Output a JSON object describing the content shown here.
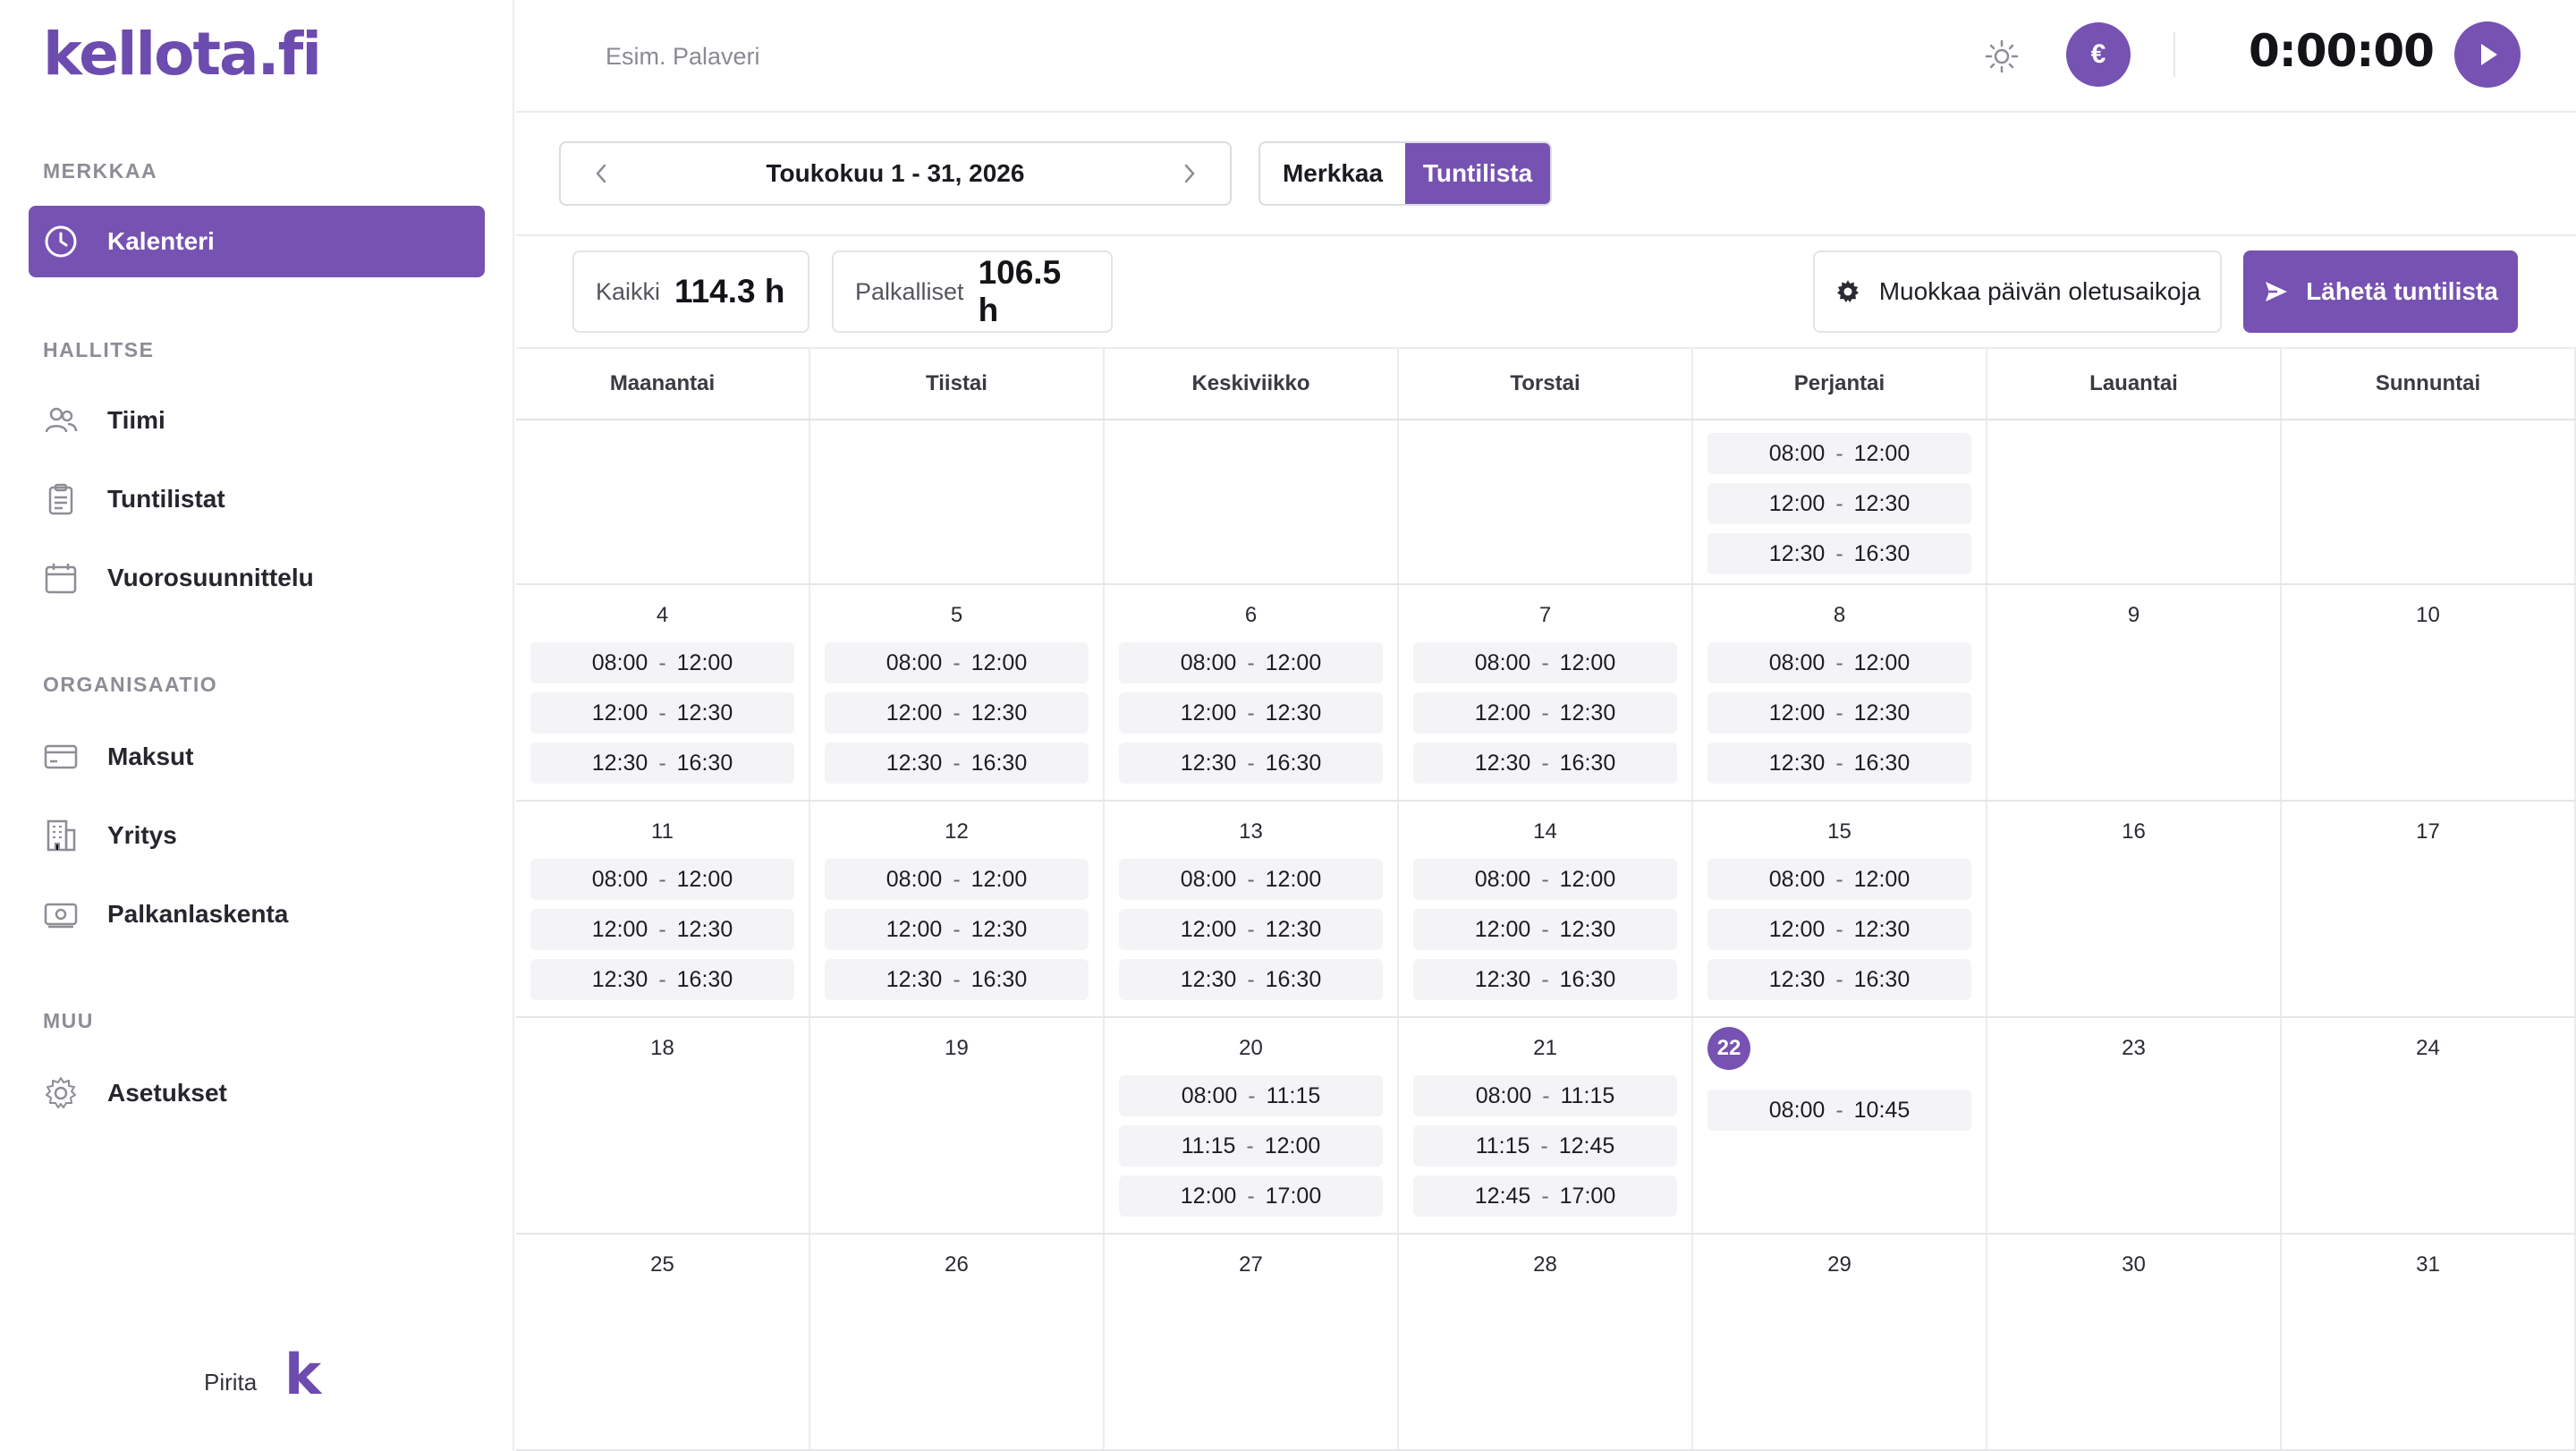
{
  "app": {
    "logo": "kellota.fi"
  },
  "sidebar": {
    "sections": [
      {
        "heading": "MERKKAA",
        "items": [
          {
            "label": "Kalenteri",
            "icon": "clock-icon",
            "active": true
          }
        ]
      },
      {
        "heading": "HALLITSE",
        "items": [
          {
            "label": "Tiimi",
            "icon": "users-icon"
          },
          {
            "label": "Tuntilistat",
            "icon": "clipboard-icon"
          },
          {
            "label": "Vuorosuunnittelu",
            "icon": "calendar-icon"
          }
        ]
      },
      {
        "heading": "ORGANISAATIO",
        "items": [
          {
            "label": "Maksut",
            "icon": "credit-card-icon"
          },
          {
            "label": "Yritys",
            "icon": "building-icon"
          },
          {
            "label": "Palkanlaskenta",
            "icon": "banknote-icon"
          }
        ]
      },
      {
        "heading": "MUU",
        "items": [
          {
            "label": "Asetukset",
            "icon": "gear-icon"
          }
        ]
      }
    ],
    "footer": {
      "user": "Pirita",
      "logo_letter": "k"
    }
  },
  "header": {
    "task_placeholder": "Esim. Palaveri",
    "euro_label": "€",
    "timer": "0:00:00"
  },
  "toolbar": {
    "date_range": "Toukokuu 1 - 31, 2026",
    "view_modes": [
      {
        "label": "Merkkaa",
        "active": false
      },
      {
        "label": "Tuntilista",
        "active": true
      }
    ],
    "stats": [
      {
        "label": "Kaikki",
        "value": "114.3 h"
      },
      {
        "label": "Palkalliset",
        "value": "106.5 h"
      }
    ],
    "edit_defaults_label": "Muokkaa päivän oletusaikoja",
    "send_label": "Lähetä tuntilista"
  },
  "colors": {
    "accent": "#7652b2",
    "entry_bg": "#f4f4f7"
  },
  "calendar": {
    "weekdays": [
      "Maanantai",
      "Tiistai",
      "Keskiviikko",
      "Torstai",
      "Perjantai",
      "Lauantai",
      "Sunnuntai"
    ],
    "today": "22",
    "weeks": [
      [
        {
          "day": "",
          "entries": []
        },
        {
          "day": "",
          "entries": []
        },
        {
          "day": "",
          "entries": []
        },
        {
          "day": "",
          "entries": []
        },
        {
          "day": "",
          "entries": [
            [
              "08:00",
              "12:00"
            ],
            [
              "12:00",
              "12:30"
            ],
            [
              "12:30",
              "16:30"
            ]
          ]
        },
        {
          "day": "",
          "entries": []
        },
        {
          "day": "",
          "entries": []
        }
      ],
      [
        {
          "day": "4",
          "entries": [
            [
              "08:00",
              "12:00"
            ],
            [
              "12:00",
              "12:30"
            ],
            [
              "12:30",
              "16:30"
            ]
          ]
        },
        {
          "day": "5",
          "entries": [
            [
              "08:00",
              "12:00"
            ],
            [
              "12:00",
              "12:30"
            ],
            [
              "12:30",
              "16:30"
            ]
          ]
        },
        {
          "day": "6",
          "entries": [
            [
              "08:00",
              "12:00"
            ],
            [
              "12:00",
              "12:30"
            ],
            [
              "12:30",
              "16:30"
            ]
          ]
        },
        {
          "day": "7",
          "entries": [
            [
              "08:00",
              "12:00"
            ],
            [
              "12:00",
              "12:30"
            ],
            [
              "12:30",
              "16:30"
            ]
          ]
        },
        {
          "day": "8",
          "entries": [
            [
              "08:00",
              "12:00"
            ],
            [
              "12:00",
              "12:30"
            ],
            [
              "12:30",
              "16:30"
            ]
          ]
        },
        {
          "day": "9",
          "entries": []
        },
        {
          "day": "10",
          "entries": []
        }
      ],
      [
        {
          "day": "11",
          "entries": [
            [
              "08:00",
              "12:00"
            ],
            [
              "12:00",
              "12:30"
            ],
            [
              "12:30",
              "16:30"
            ]
          ]
        },
        {
          "day": "12",
          "entries": [
            [
              "08:00",
              "12:00"
            ],
            [
              "12:00",
              "12:30"
            ],
            [
              "12:30",
              "16:30"
            ]
          ]
        },
        {
          "day": "13",
          "entries": [
            [
              "08:00",
              "12:00"
            ],
            [
              "12:00",
              "12:30"
            ],
            [
              "12:30",
              "16:30"
            ]
          ]
        },
        {
          "day": "14",
          "entries": [
            [
              "08:00",
              "12:00"
            ],
            [
              "12:00",
              "12:30"
            ],
            [
              "12:30",
              "16:30"
            ]
          ]
        },
        {
          "day": "15",
          "entries": [
            [
              "08:00",
              "12:00"
            ],
            [
              "12:00",
              "12:30"
            ],
            [
              "12:30",
              "16:30"
            ]
          ]
        },
        {
          "day": "16",
          "entries": []
        },
        {
          "day": "17",
          "entries": []
        }
      ],
      [
        {
          "day": "18",
          "entries": []
        },
        {
          "day": "19",
          "entries": []
        },
        {
          "day": "20",
          "entries": [
            [
              "08:00",
              "11:15"
            ],
            [
              "11:15",
              "12:00"
            ],
            [
              "12:00",
              "17:00"
            ]
          ]
        },
        {
          "day": "21",
          "entries": [
            [
              "08:00",
              "11:15"
            ],
            [
              "11:15",
              "12:45"
            ],
            [
              "12:45",
              "17:00"
            ]
          ]
        },
        {
          "day": "22",
          "entries": [
            [
              "08:00",
              "10:45"
            ]
          ]
        },
        {
          "day": "23",
          "entries": []
        },
        {
          "day": "24",
          "entries": []
        }
      ],
      [
        {
          "day": "25",
          "entries": []
        },
        {
          "day": "26",
          "entries": []
        },
        {
          "day": "27",
          "entries": []
        },
        {
          "day": "28",
          "entries": []
        },
        {
          "day": "29",
          "entries": []
        },
        {
          "day": "30",
          "entries": []
        },
        {
          "day": "31",
          "entries": []
        }
      ]
    ]
  }
}
